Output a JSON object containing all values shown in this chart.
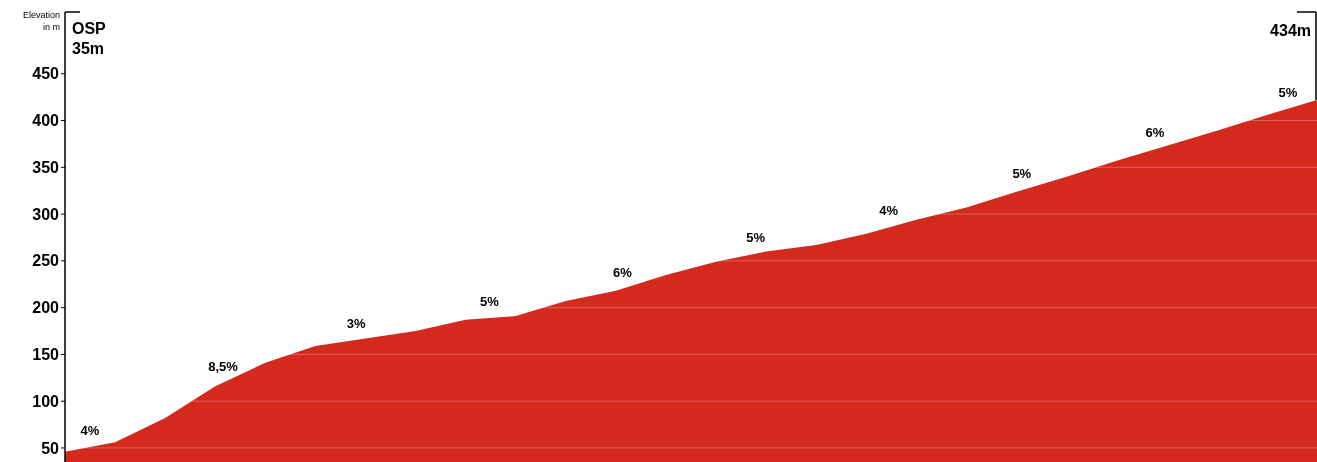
{
  "chart_data": {
    "type": "area",
    "ylabel": "Elevation in m",
    "categories": [
      null,
      null,
      null,
      null,
      null,
      null,
      null,
      null,
      null,
      null,
      null,
      null,
      null,
      null,
      null,
      null,
      null,
      null,
      null,
      null,
      null,
      null,
      null,
      null,
      null,
      null
    ],
    "values": [
      46,
      56,
      82,
      116,
      141,
      159,
      167,
      175,
      187,
      191,
      207,
      218,
      235,
      249,
      260,
      267,
      279,
      294,
      307,
      324,
      340,
      357,
      373,
      389,
      406,
      422
    ],
    "color": "#d42a1e",
    "ylim": [
      35,
      516
    ],
    "yticks": [
      50,
      100,
      150,
      200,
      250,
      300,
      350,
      400,
      450
    ],
    "grid": "y",
    "annotations": [
      "OSP 35m",
      "434m",
      "4%",
      "8,5%",
      "3%",
      "5%",
      "6%",
      "5%",
      "4%",
      "5%",
      "6%",
      "5%"
    ]
  }
}
